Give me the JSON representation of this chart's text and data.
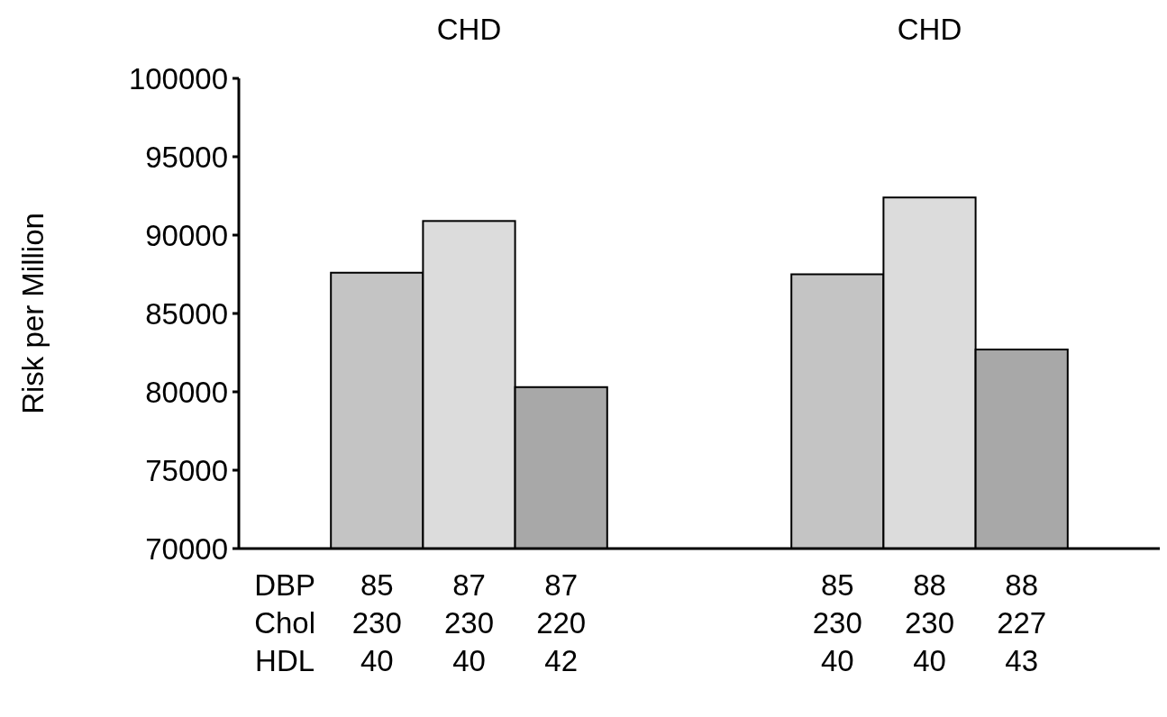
{
  "chart_data": {
    "type": "bar",
    "ylabel": "Risk per Million",
    "categories": [
      "DBP\nChol\nHDL",
      "85\n230\n40",
      "87\n230\n40",
      "87\n220\n42",
      null,
      null,
      "85\n230\n40",
      "88\n230\n40",
      "88\n227\n43",
      null
    ],
    "values": [
      null,
      87600,
      90900,
      80300,
      null,
      null,
      87500,
      92400,
      82700,
      null
    ],
    "colors": [
      null,
      "#c4c4c4",
      "#dcdcdc",
      "#a8a8a8",
      null,
      null,
      "#c4c4c4",
      "#dcdcdc",
      "#a8a8a8",
      null
    ],
    "ylim": [
      70000,
      100000
    ],
    "yticks": [
      70000,
      75000,
      80000,
      85000,
      90000,
      95000,
      100000
    ],
    "annotations": [
      "CHD",
      "CHD"
    ],
    "grid": false
  }
}
